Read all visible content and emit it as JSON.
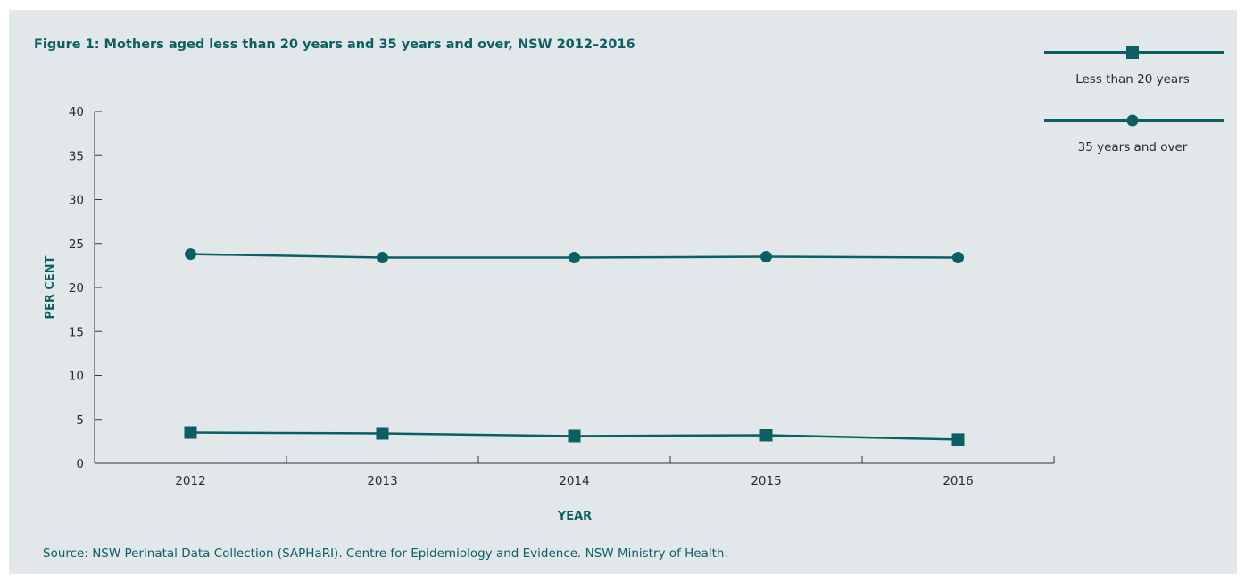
{
  "title": "Figure 1: Mothers aged less than 20 years and 35 years and over, NSW 2012–2016",
  "source": "Source: NSW Perinatal Data Collection (SAPHaRI). Centre for Epidemiology and Evidence. NSW Ministry of Health.",
  "colors": {
    "series": "#0b5f63",
    "background": "#e2e8ea",
    "text": "#2a2a2a"
  },
  "chart_data": {
    "type": "line",
    "title": "Figure 1: Mothers aged less than 20 years and 35 years and over, NSW 2012–2016",
    "xlabel": "YEAR",
    "ylabel": "PER CENT",
    "categories": [
      "2012",
      "2013",
      "2014",
      "2015",
      "2016"
    ],
    "ylim": [
      0,
      40
    ],
    "yticks": [
      "0",
      "5",
      "10",
      "15",
      "20",
      "25",
      "30",
      "35",
      "40"
    ],
    "grid": false,
    "legend": "top-right",
    "series": [
      {
        "name": "Less than 20 years",
        "marker": "square",
        "values": [
          3.5,
          3.4,
          3.1,
          3.2,
          2.7
        ]
      },
      {
        "name": "35 years and over",
        "marker": "circle",
        "values": [
          23.8,
          23.4,
          23.4,
          23.5,
          23.4
        ]
      }
    ]
  }
}
